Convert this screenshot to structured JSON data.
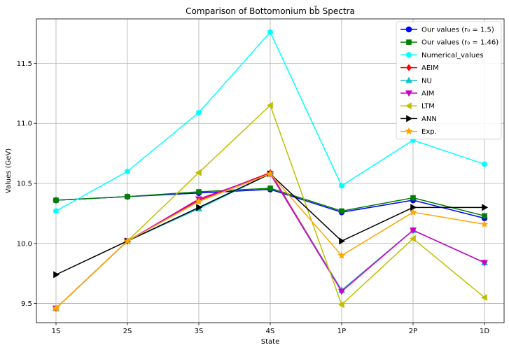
{
  "chart_data": {
    "type": "line",
    "title": "Comparison of Bottomonium bb̄ Spectra",
    "xlabel": "State",
    "ylabel": "Values (GeV)",
    "categories": [
      "1S",
      "2S",
      "3S",
      "4S",
      "1P",
      "2P",
      "1D"
    ],
    "ylim": [
      9.34,
      11.87
    ],
    "yticks": [
      9.5,
      10.0,
      10.5,
      11.0,
      11.5
    ],
    "ytick_labels": [
      "9.5",
      "10.0",
      "10.5",
      "11.0",
      "11.5"
    ],
    "grid": true,
    "legend_position": "top-right",
    "series": [
      {
        "name": "Our values (r₀ = 1.5)",
        "color": "#0000ff",
        "marker": "circle",
        "values": [
          10.36,
          10.39,
          10.42,
          10.45,
          10.26,
          10.36,
          10.21
        ]
      },
      {
        "name": "Our values (r₀ = 1.46)",
        "color": "#008000",
        "marker": "square",
        "values": [
          10.36,
          10.39,
          10.43,
          10.46,
          10.27,
          10.38,
          10.23
        ]
      },
      {
        "name": "Numerical_values",
        "color": "#00ffff",
        "marker": "hexagon",
        "values": [
          10.27,
          10.6,
          11.09,
          11.76,
          10.48,
          10.86,
          10.66
        ]
      },
      {
        "name": "AEIM",
        "color": "#ff0000",
        "marker": "diamond",
        "values": [
          9.46,
          10.02,
          10.36,
          10.59,
          9.61,
          10.11,
          9.84
        ]
      },
      {
        "name": "NU",
        "color": "#17becf",
        "marker": "triangle-up",
        "values": [
          9.46,
          10.02,
          10.29,
          10.58,
          9.61,
          10.11,
          9.84
        ]
      },
      {
        "name": "AIM",
        "color": "#cc00cc",
        "marker": "triangle-down",
        "values": [
          9.46,
          10.02,
          10.37,
          10.58,
          9.6,
          10.11,
          9.84
        ]
      },
      {
        "name": "LTM",
        "color": "#bfbf00",
        "marker": "triangle-left",
        "values": [
          9.46,
          10.02,
          10.59,
          11.15,
          9.49,
          10.04,
          9.55
        ]
      },
      {
        "name": "ANN",
        "color": "#000000",
        "marker": "triangle-right",
        "values": [
          9.74,
          10.02,
          10.3,
          10.58,
          10.02,
          10.3,
          10.3
        ]
      },
      {
        "name": "Exp.",
        "color": "#ffa500",
        "marker": "star",
        "values": [
          9.46,
          10.02,
          10.35,
          10.58,
          9.9,
          10.26,
          10.16
        ]
      }
    ]
  }
}
